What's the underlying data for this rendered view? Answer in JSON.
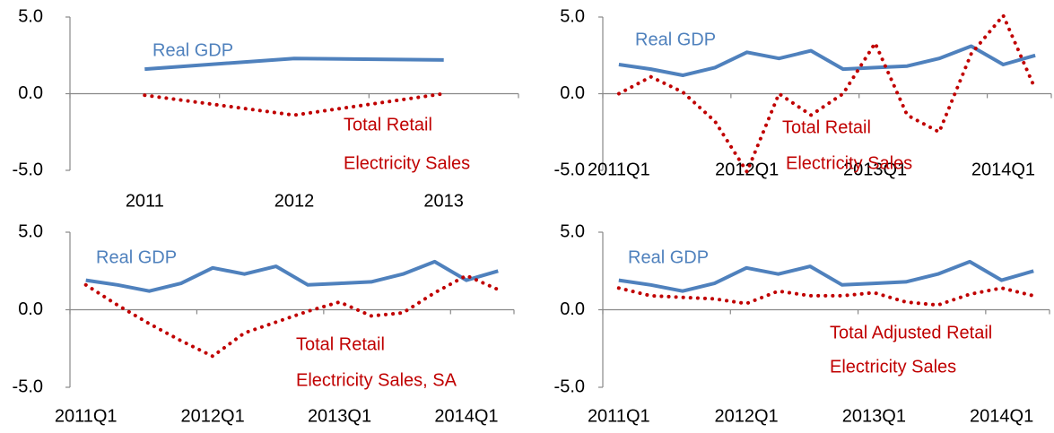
{
  "chart_data": [
    {
      "type": "line",
      "categories": [
        "2011",
        "2012",
        "2013"
      ],
      "ylim": [
        -5,
        5
      ],
      "yticks": [
        {
          "value": 5,
          "label": "5.0"
        },
        {
          "value": 0,
          "label": "0.0"
        },
        {
          "value": -5,
          "label": "-5.0"
        }
      ],
      "series": [
        {
          "name": [
            "Real GDP"
          ],
          "color": "#4f81bd",
          "dash": "solid",
          "values": [
            1.6,
            2.3,
            2.2
          ]
        },
        {
          "name": [
            "Total Retail",
            "Electricity Sales"
          ],
          "color": "#c00000",
          "dash": "dotted",
          "values": [
            -0.1,
            -1.4,
            0.0
          ]
        }
      ]
    },
    {
      "type": "line",
      "categories": [
        "2011Q1",
        null,
        null,
        null,
        "2012Q1",
        null,
        null,
        null,
        "2013Q1",
        null,
        null,
        null,
        "2014Q1",
        null
      ],
      "ylim": [
        -5,
        5
      ],
      "yticks": [
        {
          "value": 5,
          "label": "5.0"
        },
        {
          "value": 0,
          "label": "0.0"
        },
        {
          "value": -5,
          "label": "-5.0"
        }
      ],
      "series": [
        {
          "name": [
            "Real GDP"
          ],
          "color": "#4f81bd",
          "dash": "solid",
          "values": [
            1.9,
            1.6,
            1.2,
            1.7,
            2.7,
            2.3,
            2.8,
            1.6,
            1.7,
            1.8,
            2.3,
            3.1,
            1.9,
            2.5
          ]
        },
        {
          "name": [
            "Total Retail",
            "Electricity Sales"
          ],
          "color": "#c00000",
          "dash": "dotted",
          "values": [
            0.0,
            1.1,
            0.1,
            -1.8,
            -5.1,
            0.0,
            -1.4,
            0.0,
            3.3,
            -1.4,
            -2.5,
            2.6,
            5.1,
            0.3
          ]
        }
      ]
    },
    {
      "type": "line",
      "categories": [
        "2011Q1",
        null,
        null,
        null,
        "2012Q1",
        null,
        null,
        null,
        "2013Q1",
        null,
        null,
        null,
        "2014Q1",
        null
      ],
      "ylim": [
        -5,
        5
      ],
      "yticks": [
        {
          "value": 5,
          "label": "5.0"
        },
        {
          "value": 0,
          "label": "0.0"
        },
        {
          "value": -5,
          "label": "-5.0"
        }
      ],
      "series": [
        {
          "name": [
            "Real GDP"
          ],
          "color": "#4f81bd",
          "dash": "solid",
          "values": [
            1.9,
            1.6,
            1.2,
            1.7,
            2.7,
            2.3,
            2.8,
            1.6,
            1.7,
            1.8,
            2.3,
            3.1,
            1.9,
            2.5
          ]
        },
        {
          "name": [
            "Total Retail",
            "Electricity Sales, SA"
          ],
          "color": "#c00000",
          "dash": "dotted",
          "values": [
            1.6,
            0.3,
            -0.9,
            -2.0,
            -3.0,
            -1.5,
            -0.8,
            -0.1,
            0.5,
            -0.4,
            -0.2,
            1.1,
            2.2,
            1.3
          ]
        }
      ]
    },
    {
      "type": "line",
      "categories": [
        "2011Q1",
        null,
        null,
        null,
        "2012Q1",
        null,
        null,
        null,
        "2013Q1",
        null,
        null,
        null,
        "2014Q1",
        null
      ],
      "ylim": [
        -5,
        5
      ],
      "yticks": [
        {
          "value": 5,
          "label": "5.0"
        },
        {
          "value": 0,
          "label": "0.0"
        },
        {
          "value": -5,
          "label": "-5.0"
        }
      ],
      "series": [
        {
          "name": [
            "Real GDP"
          ],
          "color": "#4f81bd",
          "dash": "solid",
          "values": [
            1.9,
            1.6,
            1.2,
            1.7,
            2.7,
            2.3,
            2.8,
            1.6,
            1.7,
            1.8,
            2.3,
            3.1,
            1.9,
            2.5
          ]
        },
        {
          "name": [
            "Total Adjusted Retail",
            "Electricity Sales"
          ],
          "color": "#c00000",
          "dash": "dotted",
          "values": [
            1.4,
            0.9,
            0.8,
            0.7,
            0.4,
            1.2,
            0.9,
            0.9,
            1.1,
            0.5,
            0.3,
            1.0,
            1.4,
            0.9
          ]
        }
      ]
    }
  ]
}
